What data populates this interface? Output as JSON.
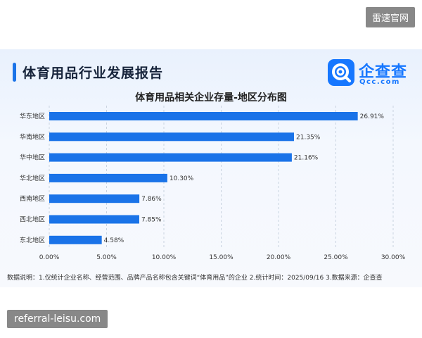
{
  "watermark_top": "雷速官网",
  "watermark_bottom": "referral-leisu.com",
  "header": {
    "title": "体育用品行业发展报告"
  },
  "logo": {
    "name": "企查查",
    "domain": "Qcc.com",
    "icon": "qcc-magnifier-logo-icon"
  },
  "colors": {
    "bar": "#1a73e8",
    "accent": "#1677ff"
  },
  "chart_data": {
    "type": "bar",
    "orientation": "horizontal",
    "title": "体育用品相关企业存量-地区分布图",
    "categories": [
      "华东地区",
      "华南地区",
      "华中地区",
      "华北地区",
      "西南地区",
      "西北地区",
      "东北地区"
    ],
    "values": [
      26.91,
      21.35,
      21.16,
      10.3,
      7.86,
      7.85,
      4.58
    ],
    "value_labels": [
      "26.91%",
      "21.35%",
      "21.16%",
      "10.30%",
      "7.86%",
      "7.85%",
      "4.58%"
    ],
    "xlim": [
      0,
      30
    ],
    "xticks": [
      0,
      5,
      10,
      15,
      20,
      25,
      30
    ],
    "xtick_labels": [
      "0.00%",
      "5.00%",
      "10.00%",
      "15.00%",
      "20.00%",
      "25.00%",
      "30.00%"
    ],
    "grid": "vertical dashed",
    "xlabel": "",
    "ylabel": ""
  },
  "footnote": "数据说明：1.仅统计企业名称、经营范围、品牌产品名称包含关键词“体育用品”的企业  2.统计时间：2025/09/16  3.数据来源：企查查"
}
